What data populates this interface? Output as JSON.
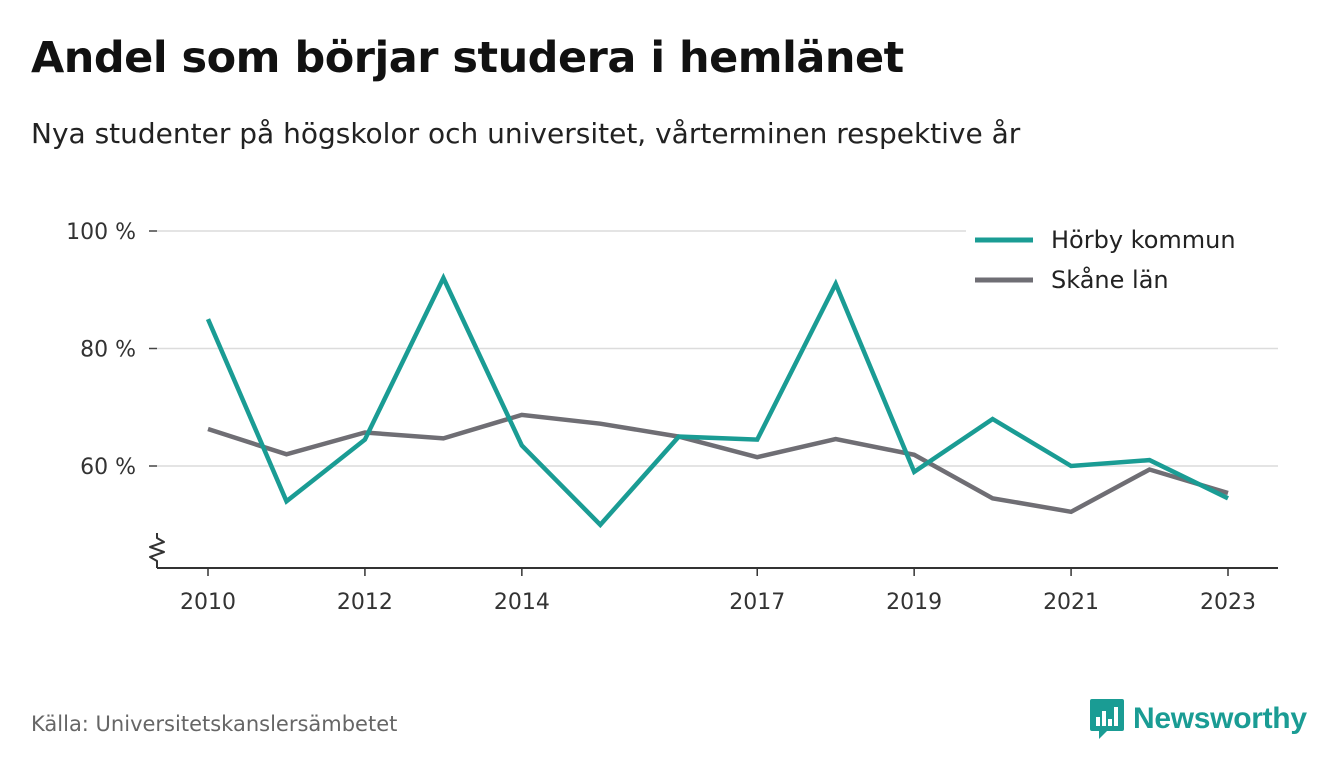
{
  "chart_data": {
    "type": "line",
    "title": "Andel som börjar studera i hemlänet",
    "subtitle": "Nya studenter på högskolor och universitet, vårterminen respektive år",
    "x": [
      2010,
      2011,
      2012,
      2013,
      2014,
      2015,
      2016,
      2017,
      2018,
      2019,
      2020,
      2021,
      2022,
      2023
    ],
    "x_tick_labels": [
      "2010",
      "2012",
      "2014",
      "2017",
      "2019",
      "2021",
      "2023"
    ],
    "x_tick_values": [
      2010,
      2012,
      2014,
      2017,
      2019,
      2021,
      2023
    ],
    "y_tick_labels": [
      "60 %",
      "80 %",
      "100 %"
    ],
    "y_tick_values": [
      60,
      80,
      100
    ],
    "ylim": [
      42.5,
      100
    ],
    "y_axis_break": true,
    "grid": true,
    "legend_position": "top-right",
    "series": [
      {
        "name": "Hörby kommun",
        "color": "#1a9c94",
        "values": [
          85,
          54,
          64.5,
          92,
          63.5,
          50,
          65,
          64.5,
          91,
          59,
          68,
          60,
          61,
          54.5
        ]
      },
      {
        "name": "Skåne län",
        "color": "#6f6e74",
        "values": [
          66.3,
          62,
          65.7,
          64.7,
          68.7,
          67.2,
          65,
          61.5,
          64.6,
          61.9,
          54.5,
          52.2,
          59.4,
          55.4
        ]
      }
    ]
  },
  "footer": {
    "source": "Källa: Universitetskanslersämbetet",
    "brand": "Newsworthy",
    "brand_icon": "bar-chart-speech-bubble-icon",
    "brand_color": "#1a9c94"
  }
}
